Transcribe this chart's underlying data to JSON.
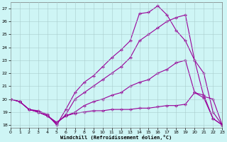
{
  "xlabel": "Windchill (Refroidissement éolien,°C)",
  "xlim": [
    0,
    23
  ],
  "ylim": [
    17.8,
    27.5
  ],
  "yticks": [
    18,
    19,
    20,
    21,
    22,
    23,
    24,
    25,
    26,
    27
  ],
  "xticks": [
    0,
    1,
    2,
    3,
    4,
    5,
    6,
    7,
    8,
    9,
    10,
    11,
    12,
    13,
    14,
    15,
    16,
    17,
    18,
    19,
    20,
    21,
    22,
    23
  ],
  "background_color": "#cef5f5",
  "grid_color": "#aacccc",
  "line_color": "#990099",
  "line1_x": [
    0,
    1,
    2,
    3,
    4,
    5,
    6,
    7,
    8,
    9,
    10,
    11,
    12,
    13,
    14,
    15,
    16,
    17,
    18,
    19,
    20,
    21,
    22,
    23
  ],
  "line1_y": [
    20.0,
    19.8,
    19.2,
    19.1,
    18.8,
    18.0,
    19.2,
    20.5,
    21.3,
    21.8,
    22.5,
    23.2,
    23.8,
    24.5,
    26.6,
    26.7,
    27.2,
    26.5,
    25.3,
    24.5,
    23.0,
    20.2,
    20.0,
    18.0
  ],
  "line2_x": [
    0,
    1,
    2,
    3,
    4,
    5,
    6,
    7,
    8,
    9,
    10,
    11,
    12,
    13,
    14,
    15,
    16,
    17,
    18,
    19,
    20,
    21,
    22,
    23
  ],
  "line2_y": [
    20.0,
    19.8,
    19.2,
    19.0,
    18.7,
    18.1,
    18.8,
    20.0,
    20.5,
    21.0,
    21.5,
    22.0,
    22.5,
    23.2,
    24.5,
    25.0,
    25.5,
    26.0,
    26.3,
    26.5,
    23.0,
    22.0,
    19.0,
    18.0
  ],
  "line3_x": [
    0,
    1,
    2,
    3,
    4,
    5,
    6,
    7,
    8,
    9,
    10,
    11,
    12,
    13,
    14,
    15,
    16,
    17,
    18,
    19,
    20,
    21,
    22,
    23
  ],
  "line3_y": [
    20.0,
    19.8,
    19.2,
    19.0,
    18.7,
    18.2,
    18.7,
    19.0,
    19.5,
    19.8,
    20.0,
    20.3,
    20.5,
    21.0,
    21.3,
    21.5,
    22.0,
    22.3,
    22.8,
    23.0,
    20.5,
    20.3,
    18.5,
    18.0
  ],
  "line4_x": [
    0,
    1,
    2,
    3,
    4,
    5,
    6,
    7,
    8,
    9,
    10,
    11,
    12,
    13,
    14,
    15,
    16,
    17,
    18,
    19,
    20,
    21,
    22,
    23
  ],
  "line4_y": [
    20.0,
    19.8,
    19.2,
    19.0,
    18.7,
    18.2,
    18.7,
    18.9,
    19.0,
    19.1,
    19.1,
    19.2,
    19.2,
    19.2,
    19.3,
    19.3,
    19.4,
    19.5,
    19.5,
    19.6,
    20.5,
    20.1,
    18.5,
    18.0
  ]
}
